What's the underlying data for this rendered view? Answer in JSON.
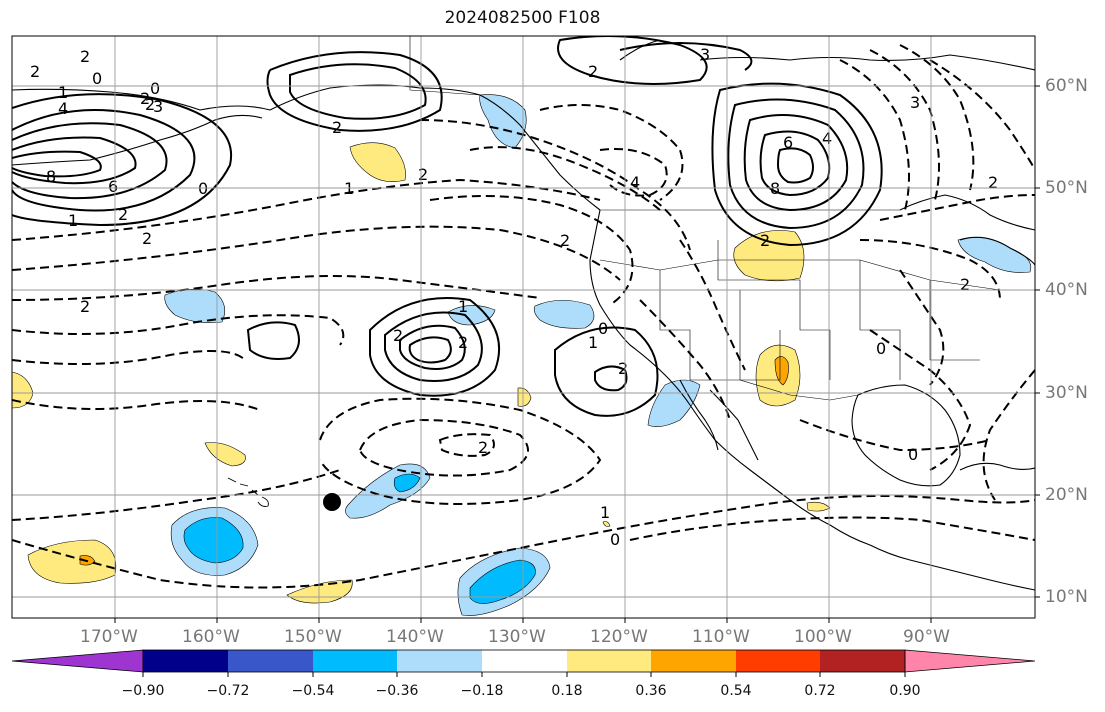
{
  "title": "2024082500 F108",
  "map": {
    "lon_labels": [
      "170°W",
      "160°W",
      "150°W",
      "140°W",
      "130°W",
      "120°W",
      "110°W",
      "100°W",
      "90°W"
    ],
    "lat_labels": [
      "60°N",
      "50°N",
      "40°N",
      "30°N",
      "20°N",
      "10°N"
    ],
    "contour_labels": [
      "2",
      "0",
      "2",
      "1",
      "0",
      "2",
      "2",
      "4",
      "3",
      "8",
      "6",
      "0",
      "1",
      "2",
      "2",
      "2",
      "1",
      "2",
      "3",
      "2",
      "6",
      "4",
      "8",
      "4",
      "2",
      "2",
      "1",
      "2",
      "2",
      "2",
      "2",
      "0",
      "2",
      "2",
      "1",
      "0",
      "0",
      "1",
      "0",
      "2",
      "3"
    ],
    "colors": {
      "pos1": "#ffea80",
      "pos2": "#ffa500",
      "neg1": "#aeddfc",
      "neg2": "#00bcff",
      "neg3": "#3a57c9"
    }
  },
  "colorbar": {
    "ticks": [
      "−0.90",
      "−0.72",
      "−0.54",
      "−0.36",
      "−0.18",
      "0.18",
      "0.36",
      "0.54",
      "0.72",
      "0.90"
    ],
    "colors": [
      "#9e35d0",
      "#00008b",
      "#3a57c9",
      "#00bcff",
      "#aeddfc",
      "#ffffff",
      "#ffea80",
      "#ffa500",
      "#ff3d00",
      "#b22222",
      "#ff85aa"
    ]
  }
}
